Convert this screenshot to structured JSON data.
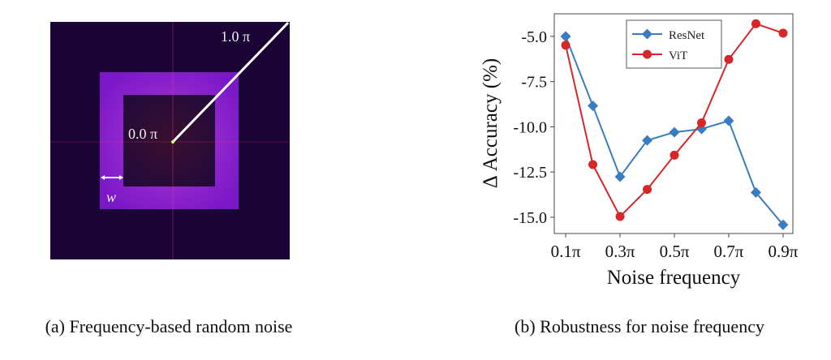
{
  "captions": {
    "a": "(a) Frequency-based random noise",
    "b": "(b) Robustness for noise frequency"
  },
  "spectrum": {
    "outer_label": "1.0 π",
    "center_label": "0.0 π",
    "width_label": "w"
  },
  "chart_data": {
    "type": "line",
    "title": "",
    "xlabel": "Noise frequency",
    "ylabel": "Δ Accuracy (%)",
    "x": [
      0.1,
      0.2,
      0.3,
      0.4,
      0.5,
      0.6,
      0.7,
      0.8,
      0.9
    ],
    "x_ticks": [
      0.1,
      0.3,
      0.5,
      0.7,
      0.9
    ],
    "x_tick_labels": [
      "0.1π",
      "0.3π",
      "0.5π",
      "0.7π",
      "0.9π"
    ],
    "y_ticks": [
      -5.0,
      -7.5,
      -10.0,
      -12.5,
      -15.0
    ],
    "y_tick_labels": [
      "-5.0",
      "-7.5",
      "-10.0",
      "-12.5",
      "-15.0"
    ],
    "xlim": [
      0.058,
      0.936
    ],
    "ylim": [
      -15.9,
      -3.75
    ],
    "grid": false,
    "legend_position": "top-center",
    "series": [
      {
        "name": "ResNet",
        "color": "#3a7cc2",
        "marker": "diamond",
        "values": [
          -5.0,
          -8.84,
          -12.76,
          -10.75,
          -10.3,
          -10.12,
          -9.67,
          -13.63,
          -15.42
        ]
      },
      {
        "name": "ViT",
        "color": "#d62728",
        "marker": "circle",
        "values": [
          -5.49,
          -12.09,
          -14.96,
          -13.46,
          -11.57,
          -9.78,
          -6.27,
          -4.3,
          -4.82
        ]
      }
    ]
  }
}
